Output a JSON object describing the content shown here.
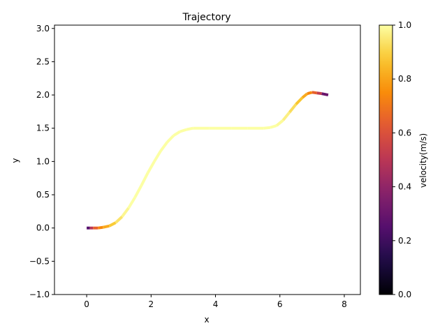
{
  "chart_data": {
    "type": "line",
    "title": "Trajectory",
    "xlabel": "x",
    "ylabel": "y",
    "xlim": [
      -1.0,
      8.5
    ],
    "ylim": [
      -1.0,
      3.05
    ],
    "xticks": [
      0,
      2,
      4,
      6,
      8
    ],
    "yticks": [
      -1.0,
      -0.5,
      0.0,
      0.5,
      1.0,
      1.5,
      2.0,
      2.5,
      3.0
    ],
    "xtick_labels": [
      "0",
      "2",
      "4",
      "6",
      "8"
    ],
    "ytick_labels": [
      "−1.0",
      "−0.5",
      "0.0",
      "0.5",
      "1.0",
      "1.5",
      "2.0",
      "2.5",
      "3.0"
    ],
    "grid": false,
    "colormap": "inferno",
    "colorbar": {
      "label": "velocity(m/s)",
      "range": [
        0.0,
        1.0
      ],
      "ticks": [
        0.0,
        0.2,
        0.4,
        0.6,
        0.8,
        1.0
      ],
      "tick_labels": [
        "0.0",
        "0.2",
        "0.4",
        "0.6",
        "0.8",
        "1.0"
      ]
    },
    "series": [
      {
        "x": [
          0.0,
          0.1,
          0.2,
          0.35,
          0.5,
          0.7,
          0.9,
          1.1,
          1.3,
          1.5,
          1.7,
          1.9,
          2.1,
          2.3,
          2.5,
          2.7,
          2.9,
          3.1,
          3.3,
          3.5,
          3.8,
          4.0,
          4.5,
          5.0,
          5.5,
          5.7,
          5.9,
          6.1,
          6.3,
          6.5,
          6.7,
          6.85,
          7.0,
          7.15,
          7.3,
          7.5
        ],
        "y": [
          0.0,
          0.0,
          0.0,
          0.0,
          0.01,
          0.03,
          0.08,
          0.17,
          0.3,
          0.46,
          0.64,
          0.83,
          1.0,
          1.16,
          1.29,
          1.39,
          1.45,
          1.48,
          1.5,
          1.5,
          1.5,
          1.5,
          1.5,
          1.5,
          1.5,
          1.51,
          1.54,
          1.62,
          1.74,
          1.86,
          1.96,
          2.02,
          2.04,
          2.03,
          2.02,
          2.0
        ],
        "velocity": [
          0.1,
          0.4,
          0.6,
          0.7,
          0.78,
          0.85,
          0.92,
          0.96,
          1.0,
          1.0,
          1.0,
          1.0,
          1.0,
          1.0,
          1.0,
          1.0,
          1.0,
          1.0,
          1.0,
          1.0,
          1.0,
          1.0,
          1.0,
          1.0,
          1.0,
          1.0,
          1.0,
          0.98,
          0.95,
          0.9,
          0.85,
          0.78,
          0.7,
          0.6,
          0.45,
          0.15
        ]
      }
    ]
  }
}
